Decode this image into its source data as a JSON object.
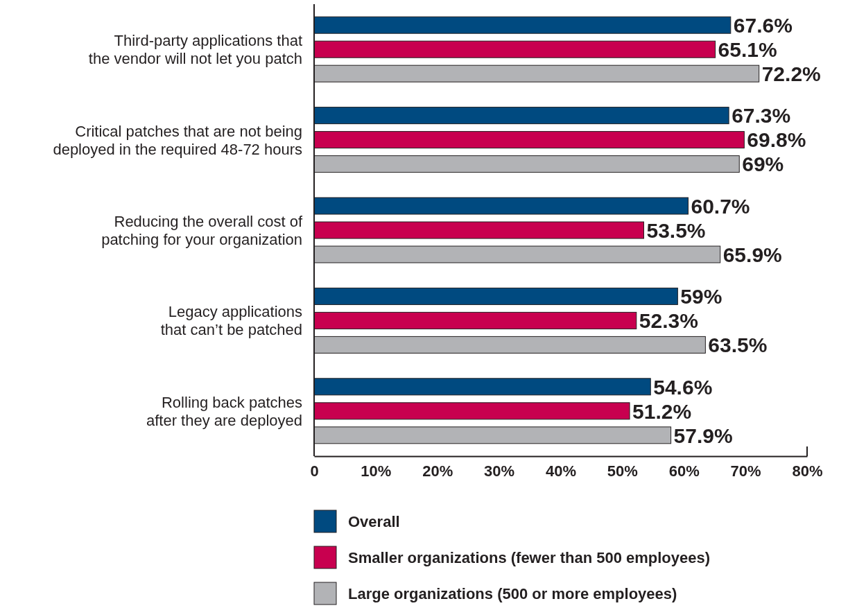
{
  "chart_data": {
    "type": "bar",
    "orientation": "horizontal",
    "categories": [
      "Third-party applications that the vendor will not let you patch",
      "Critical patches that are not being deployed in the required 48-72 hours",
      "Reducing the overall cost of patching for your organization",
      "Legacy applications that can’t be patched",
      "Rolling back patches after they are deployed"
    ],
    "series": [
      {
        "name": "Overall",
        "color": "#004a80",
        "values": [
          67.6,
          67.3,
          60.7,
          59,
          54.6
        ],
        "value_labels": [
          "67.6%",
          "67.3%",
          "60.7%",
          "59%",
          "54.6%"
        ]
      },
      {
        "name": "Smaller organizations (fewer than 500 employees)",
        "color": "#c8004f",
        "values": [
          65.1,
          69.8,
          53.5,
          52.3,
          51.2
        ],
        "value_labels": [
          "65.1%",
          "69.8%",
          "53.5%",
          "52.3%",
          "51.2%"
        ]
      },
      {
        "name": "Large organizations (500 or more employees)",
        "color": "#b2b3b6",
        "values": [
          72.2,
          69,
          65.9,
          63.5,
          57.9
        ],
        "value_labels": [
          "72.2%",
          "69%",
          "65.9%",
          "63.5%",
          "57.9%"
        ]
      }
    ],
    "xlim": [
      0,
      80
    ],
    "xticks": [
      0,
      {
        "value": 10,
        "label": "10%"
      },
      {
        "value": 20,
        "label": "20%"
      },
      {
        "value": 30,
        "label": "30%"
      },
      {
        "value": 40,
        "label": "40%"
      },
      {
        "value": 50,
        "label": "50%"
      },
      {
        "value": 60,
        "label": "60%"
      },
      {
        "value": 70,
        "label": "70%"
      },
      {
        "value": 80,
        "label": "80%"
      }
    ],
    "grid": false,
    "legend": "bottom"
  }
}
